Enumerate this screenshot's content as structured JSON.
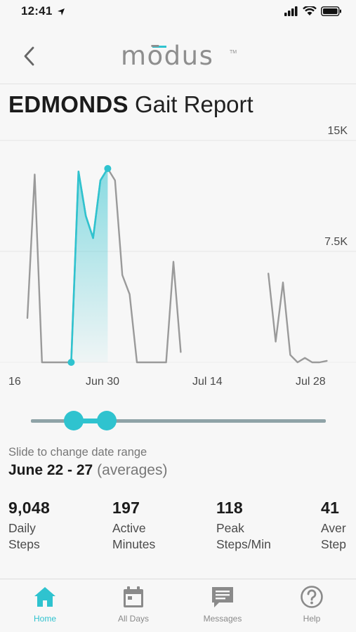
{
  "status_bar": {
    "time": "12:41"
  },
  "header": {
    "logo_text": "mōdus",
    "logo_tm": "TM"
  },
  "title": {
    "bold": "EDMONDS",
    "light": "Gait Report"
  },
  "chart_data": {
    "type": "line",
    "x_tick_labels": [
      "16",
      "Jun 30",
      "Jul 14",
      "Jul 28"
    ],
    "y_tick_labels": [
      "15K",
      "7.5K"
    ],
    "ylim": [
      0,
      15000
    ],
    "grid": true,
    "series": [
      {
        "color": "#9a9a9a",
        "values": [
          [
            16,
            3000
          ],
          [
            17,
            12700
          ],
          [
            18,
            0
          ],
          [
            19,
            0
          ],
          [
            20,
            0
          ],
          [
            21,
            0
          ],
          [
            22,
            0
          ],
          [
            23,
            12900
          ],
          [
            24,
            9900
          ],
          [
            25,
            8400
          ],
          [
            26,
            12300
          ],
          [
            27,
            13100
          ],
          [
            28,
            12300
          ],
          [
            29,
            5900
          ],
          [
            30,
            4600
          ],
          [
            31,
            0
          ],
          [
            32,
            0
          ],
          [
            33,
            0
          ],
          [
            34,
            0
          ],
          [
            35,
            0
          ],
          [
            36,
            6800
          ],
          [
            37,
            700
          ],
          [
            49,
            6000
          ],
          [
            50,
            1400
          ],
          [
            51,
            5400
          ],
          [
            52,
            500
          ],
          [
            53,
            0
          ],
          [
            54,
            300
          ],
          [
            55,
            0
          ],
          [
            56,
            0
          ],
          [
            57,
            100
          ]
        ]
      },
      {
        "color": "#2fc3cf",
        "highlighted": true,
        "values": [
          [
            22,
            0
          ],
          [
            23,
            12900
          ],
          [
            24,
            9900
          ],
          [
            25,
            8400
          ],
          [
            26,
            12300
          ],
          [
            27,
            13100
          ]
        ]
      }
    ]
  },
  "slider": {
    "start_fraction": 0.145,
    "end_fraction": 0.258
  },
  "range_info": {
    "hint": "Slide to change date range",
    "dates": "June 22 - 27",
    "note": "(averages)"
  },
  "stats": [
    {
      "value": "9,048",
      "label_line1": "Daily",
      "label_line2": "Steps"
    },
    {
      "value": "197",
      "label_line1": "Active",
      "label_line2": "Minutes"
    },
    {
      "value": "118",
      "label_line1": "Peak",
      "label_line2": "Steps/Min"
    },
    {
      "value": "41",
      "label_line1": "Aver",
      "label_line2": "Step"
    }
  ],
  "tabs": [
    {
      "label": "Home",
      "icon": "home-icon",
      "active": true
    },
    {
      "label": "All Days",
      "icon": "calendar-icon",
      "active": false
    },
    {
      "label": "Messages",
      "icon": "message-icon",
      "active": false
    },
    {
      "label": "Help",
      "icon": "help-icon",
      "active": false
    }
  ],
  "colors": {
    "accent": "#2fc3cf",
    "line": "#9a9a9a",
    "inactive": "#8a8a8a"
  }
}
